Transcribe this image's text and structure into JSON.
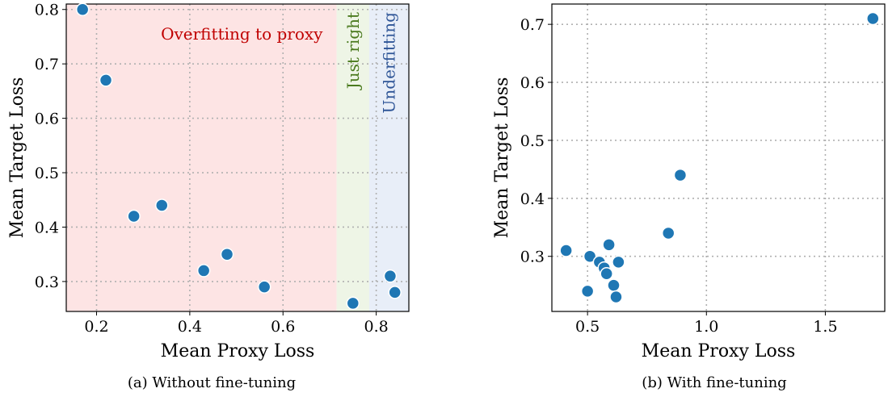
{
  "chart_data": [
    {
      "type": "scatter",
      "caption": "(a) Without fine-tuning",
      "xlabel": "Mean Proxy Loss",
      "ylabel": "Mean Target Loss",
      "xlim": [
        0.135,
        0.87
      ],
      "ylim": [
        0.245,
        0.81
      ],
      "xticks": [
        0.2,
        0.4,
        0.6,
        0.8
      ],
      "yticks": [
        0.3,
        0.4,
        0.5,
        0.6,
        0.7,
        0.8
      ],
      "grid": true,
      "point_color": "#1f77b4",
      "regions": [
        {
          "label": "Overfitting to proxy",
          "x_range": [
            0.135,
            0.715
          ],
          "fill": "#fde4e4",
          "text_color": "#c00000",
          "orientation": "horizontal"
        },
        {
          "label": "Just right",
          "x_range": [
            0.715,
            0.785
          ],
          "fill": "#eef5e6",
          "text_color": "#4a7a1e",
          "orientation": "vertical"
        },
        {
          "label": "Underfitting",
          "x_range": [
            0.785,
            0.87
          ],
          "fill": "#e8eef8",
          "text_color": "#2e5597",
          "orientation": "vertical"
        }
      ],
      "points": [
        {
          "x": 0.17,
          "y": 0.8
        },
        {
          "x": 0.22,
          "y": 0.67
        },
        {
          "x": 0.28,
          "y": 0.42
        },
        {
          "x": 0.34,
          "y": 0.44
        },
        {
          "x": 0.43,
          "y": 0.32
        },
        {
          "x": 0.48,
          "y": 0.35
        },
        {
          "x": 0.56,
          "y": 0.29
        },
        {
          "x": 0.75,
          "y": 0.26
        },
        {
          "x": 0.83,
          "y": 0.31
        },
        {
          "x": 0.84,
          "y": 0.28
        }
      ]
    },
    {
      "type": "scatter",
      "caption": "(b) With fine-tuning",
      "xlabel": "Mean Proxy Loss",
      "ylabel": "Mean Target Loss",
      "xlim": [
        0.35,
        1.75
      ],
      "ylim": [
        0.205,
        0.735
      ],
      "xticks": [
        0.5,
        1.0,
        1.5
      ],
      "yticks": [
        0.3,
        0.4,
        0.5,
        0.6,
        0.7
      ],
      "grid": true,
      "point_color": "#1f77b4",
      "points": [
        {
          "x": 0.41,
          "y": 0.31
        },
        {
          "x": 0.5,
          "y": 0.24
        },
        {
          "x": 0.51,
          "y": 0.3
        },
        {
          "x": 0.55,
          "y": 0.29
        },
        {
          "x": 0.57,
          "y": 0.28
        },
        {
          "x": 0.58,
          "y": 0.27
        },
        {
          "x": 0.59,
          "y": 0.32
        },
        {
          "x": 0.61,
          "y": 0.25
        },
        {
          "x": 0.62,
          "y": 0.23
        },
        {
          "x": 0.63,
          "y": 0.29
        },
        {
          "x": 0.84,
          "y": 0.34
        },
        {
          "x": 0.89,
          "y": 0.44
        },
        {
          "x": 1.7,
          "y": 0.71
        }
      ]
    }
  ]
}
